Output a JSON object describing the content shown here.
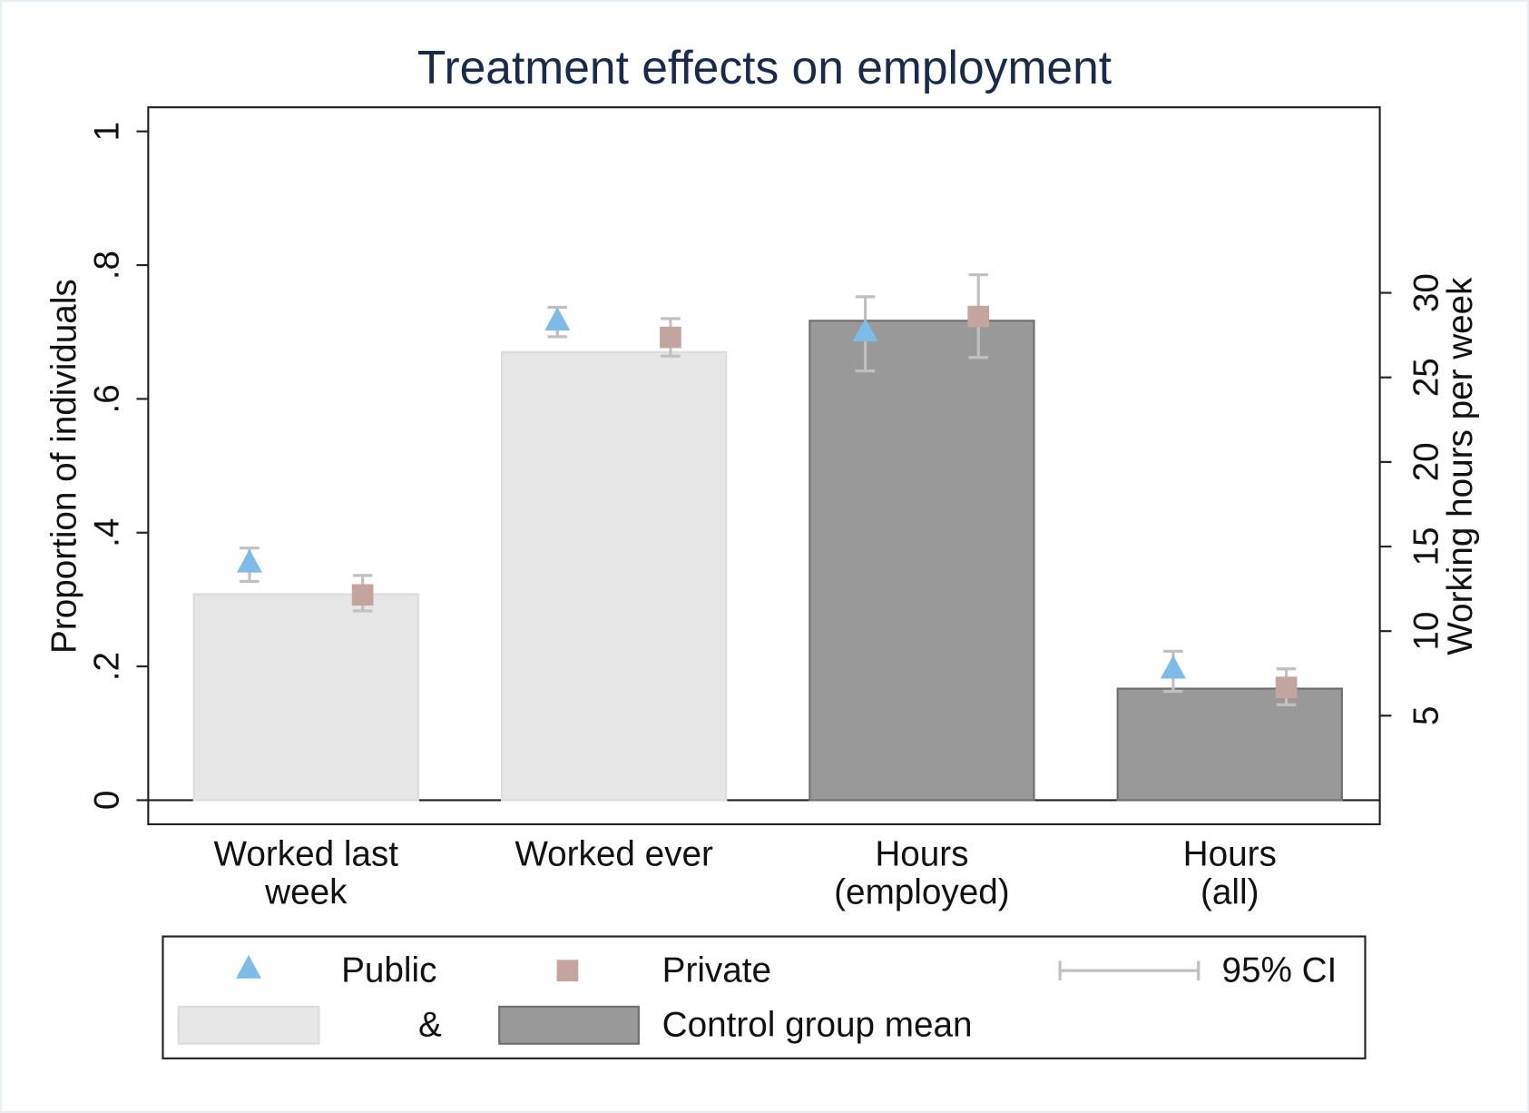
{
  "chart_data": {
    "type": "bar-dot",
    "title": "Treatment effects on employment",
    "ylabel": "Proportion of individuals",
    "y2label": "Working hours per week",
    "categories": [
      [
        "Worked last",
        "week"
      ],
      [
        "Worked ever"
      ],
      [
        "Hours",
        "(employed)"
      ],
      [
        "Hours",
        "(all)"
      ]
    ],
    "category_axes": [
      "y",
      "y",
      "y2",
      "y2"
    ],
    "ylim": [
      -0.036,
      1.036
    ],
    "yticks": [
      0,
      {
        "value": 0.2,
        "label": ".2"
      },
      {
        "value": 0.4,
        "label": ".4"
      },
      {
        "value": 0.6,
        "label": ".6"
      },
      {
        "value": 0.8,
        "label": ".8"
      },
      1
    ],
    "y2lim": [
      -1.42,
      40.97
    ],
    "y2ticks": [
      5,
      10,
      15,
      20,
      25,
      30
    ],
    "control": {
      "name": "Control group mean",
      "values": [
        0.308,
        0.67,
        28.35,
        6.6
      ],
      "colors": [
        "#e6e6e6",
        "#e6e6e6",
        "#999999",
        "#999999"
      ]
    },
    "series": [
      {
        "name": "Public",
        "marker": "triangle",
        "color": "#7fbbe8",
        "values": [
          0.355,
          0.717,
          27.7,
          7.77
        ],
        "ci_low": [
          0.327,
          0.693,
          25.38,
          6.44
        ],
        "ci_high": [
          0.377,
          0.737,
          29.77,
          8.81
        ]
      },
      {
        "name": "Private",
        "marker": "square",
        "color": "#c4a49e",
        "values": [
          0.307,
          0.692,
          28.6,
          6.67
        ],
        "ci_low": [
          0.283,
          0.664,
          26.18,
          5.64
        ],
        "ci_high": [
          0.336,
          0.72,
          31.07,
          7.77
        ]
      }
    ],
    "ci_label": "95% CI",
    "ci_color": "#c0c0c0",
    "legend_joiner": "&"
  }
}
